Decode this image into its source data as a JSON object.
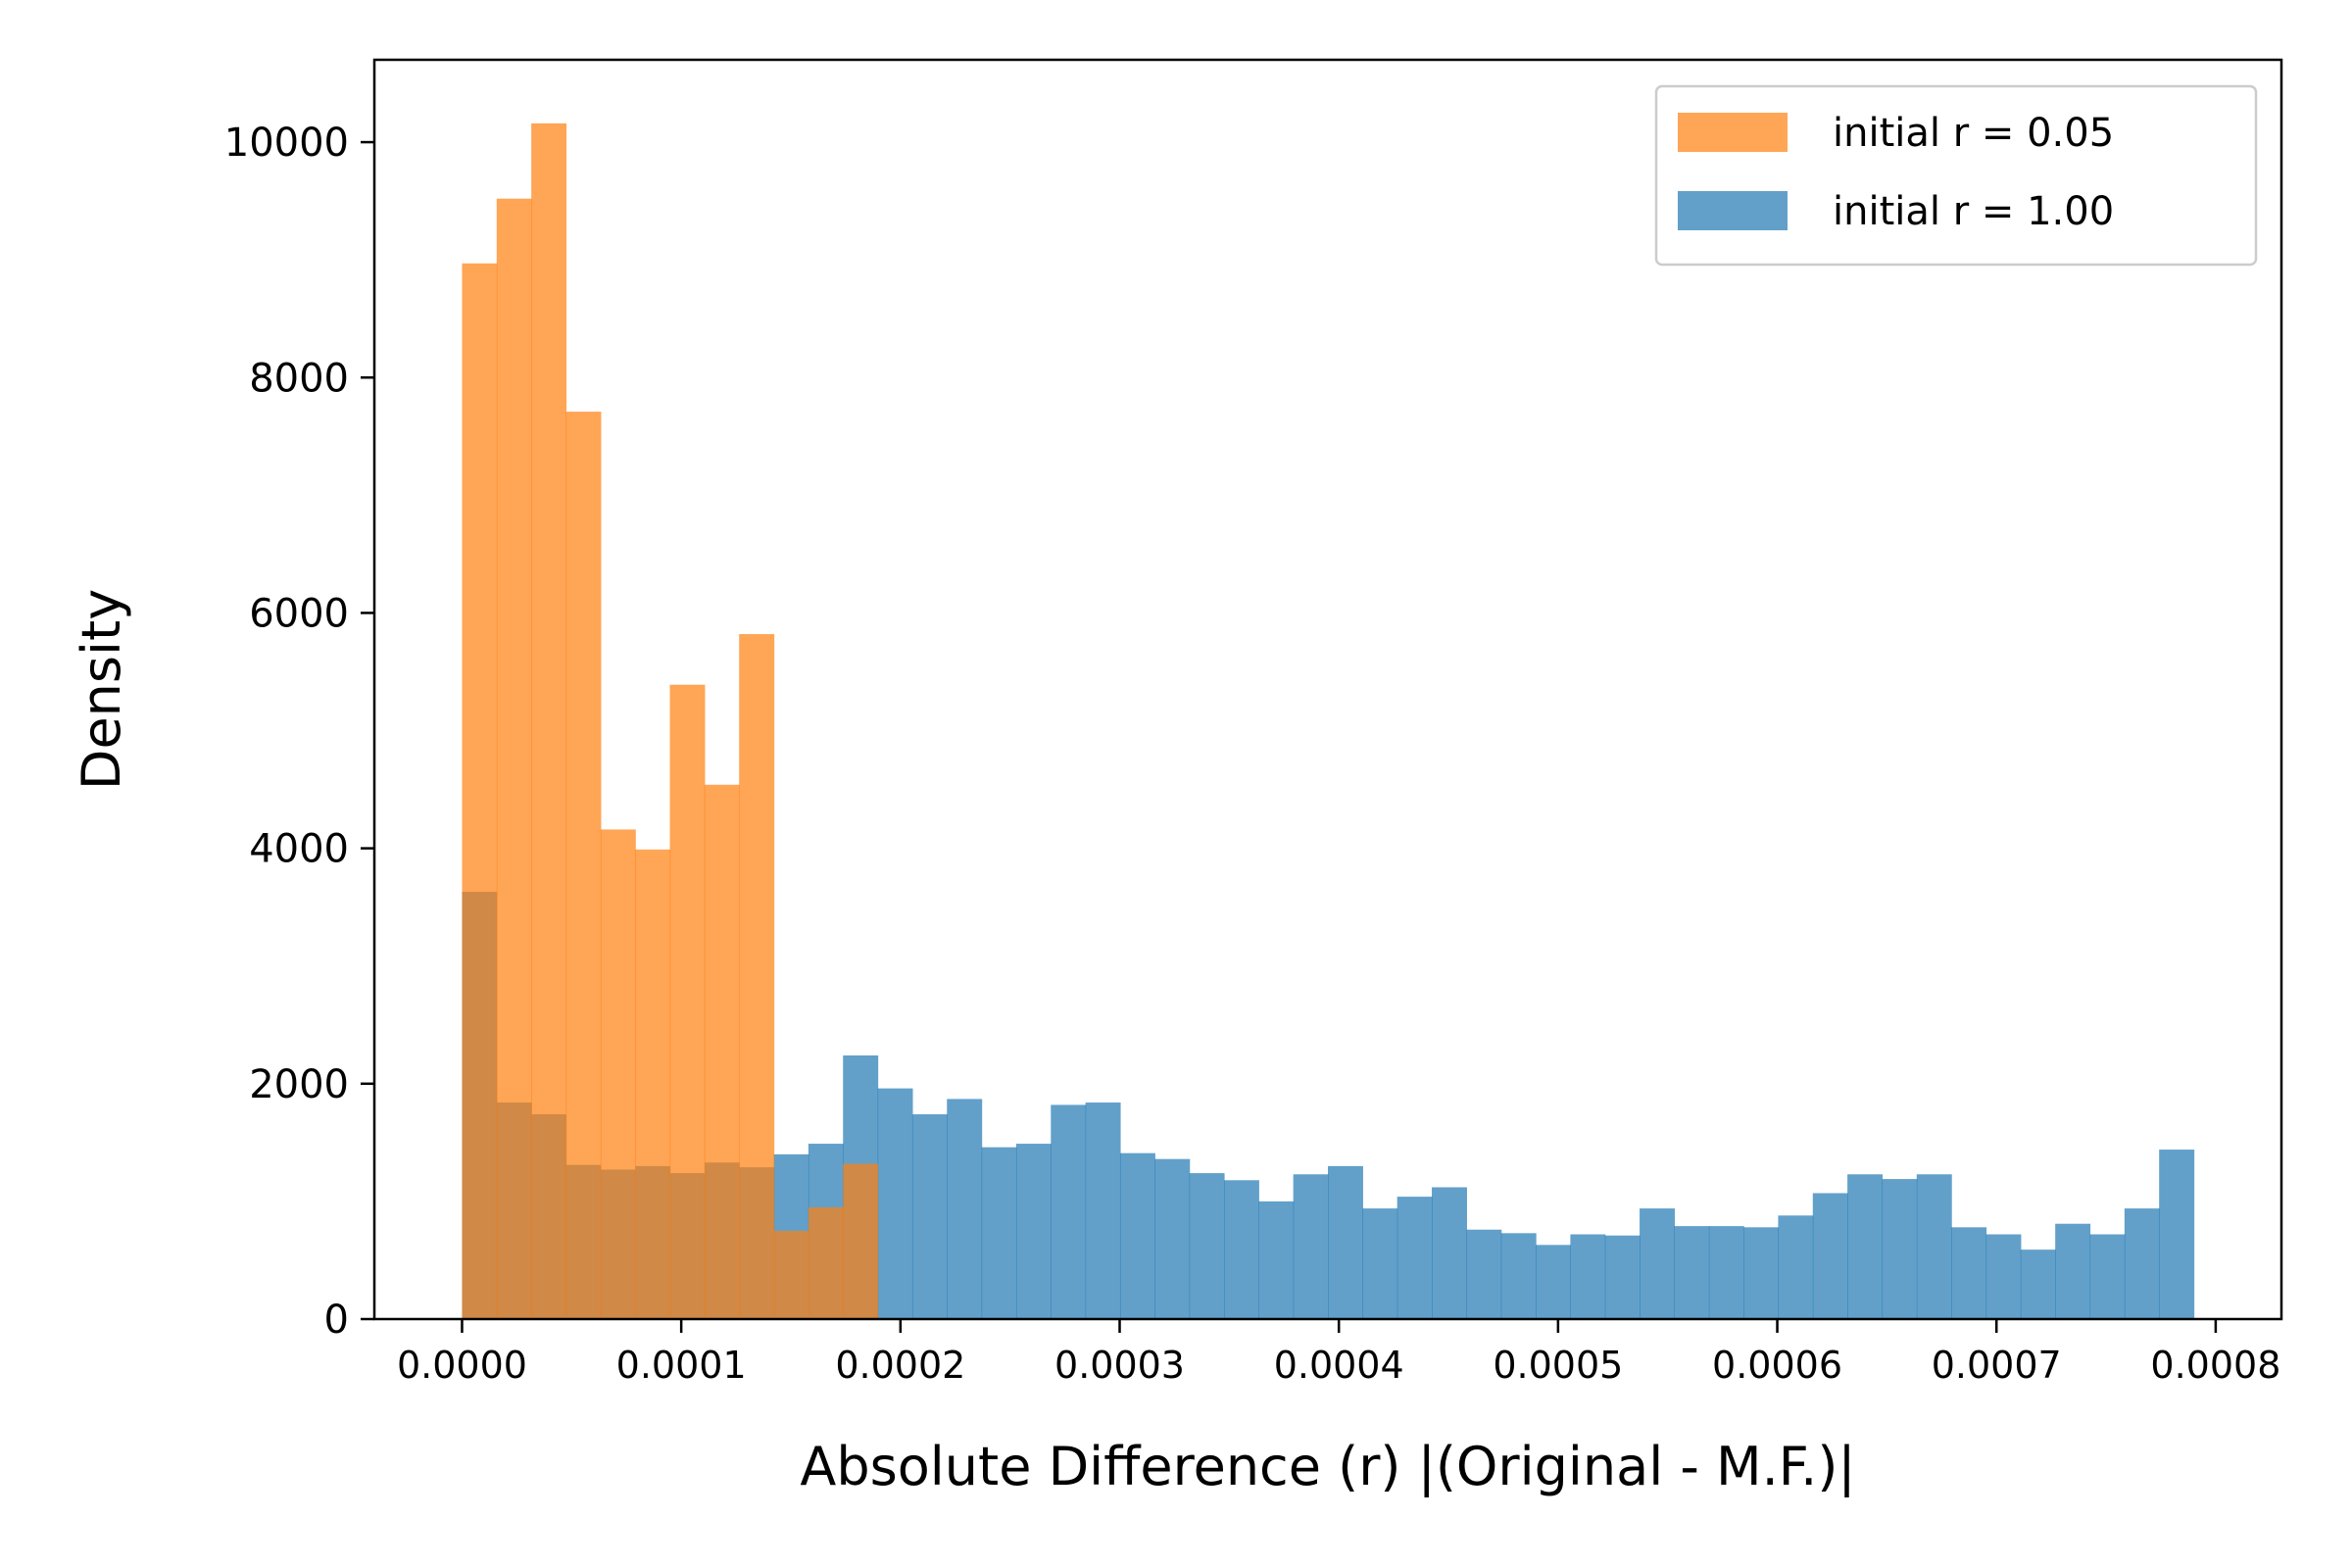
{
  "chart_data": {
    "type": "bar",
    "subtype": "overlaid-histogram",
    "title": "",
    "xlabel": "Absolute Difference (r) |(Original - M.F.)|",
    "ylabel": "Density",
    "xlim": [
      -4e-05,
      0.00083
    ],
    "ylim": [
      0,
      10700
    ],
    "x_ticks": [
      0,
      0.0001,
      0.0002,
      0.0003,
      0.0004,
      0.0005,
      0.0006,
      0.0007,
      0.0008
    ],
    "x_tick_labels": [
      "0.0000",
      "0.0001",
      "0.0002",
      "0.0003",
      "0.0004",
      "0.0005",
      "0.0006",
      "0.0007",
      "0.0008"
    ],
    "y_ticks": [
      0,
      2000,
      4000,
      6000,
      8000,
      10000
    ],
    "y_tick_labels": [
      "0",
      "2000",
      "4000",
      "6000",
      "8000",
      "10000"
    ],
    "grid": false,
    "legend_position": "top-right",
    "series": [
      {
        "name": "initial r = 1.00",
        "color": "#1f77b4",
        "opacity": 0.7,
        "bin_start": 0,
        "bin_width": 1.58e-05,
        "values": [
          3630,
          1840,
          1740,
          1310,
          1270,
          1300,
          1240,
          1330,
          1290,
          1400,
          1490,
          2240,
          1960,
          1740,
          1870,
          1460,
          1490,
          1820,
          1840,
          1410,
          1360,
          1240,
          1180,
          1000,
          1230,
          1300,
          940,
          1040,
          1120,
          760,
          730,
          630,
          720,
          710,
          940,
          790,
          790,
          780,
          880,
          1070,
          1230,
          1190,
          1230,
          780,
          720,
          590,
          810,
          720,
          940,
          1440
        ]
      },
      {
        "name": "initial r = 0.05",
        "color": "#ff7f0e",
        "opacity": 0.7,
        "bin_start": 0,
        "bin_width": 1.58e-05,
        "values": [
          8970,
          9520,
          10160,
          7710,
          4160,
          3990,
          5390,
          4540,
          5820,
          750,
          950,
          1320
        ]
      }
    ]
  }
}
